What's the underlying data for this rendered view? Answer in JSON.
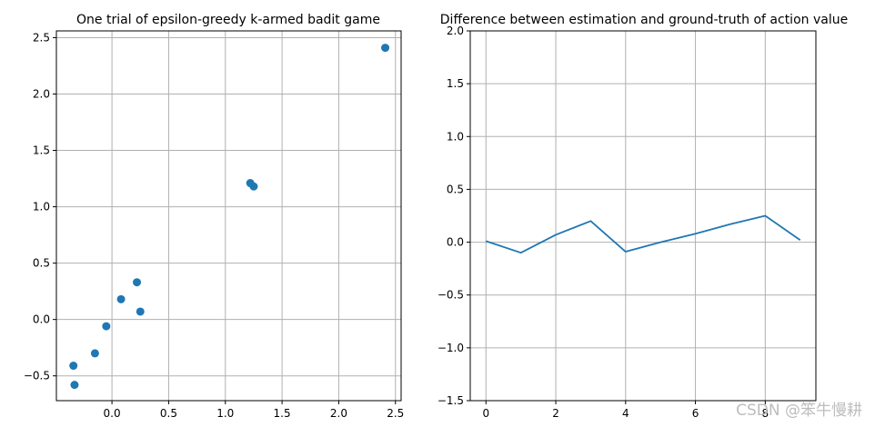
{
  "chart_data": [
    {
      "type": "scatter",
      "title": "One trial of epsilon-greedy k-armed badit game",
      "xlabel": "",
      "ylabel": "",
      "xlim": [
        -0.49,
        2.55
      ],
      "ylim": [
        -0.72,
        2.56
      ],
      "xticks": [
        0.0,
        0.5,
        1.0,
        1.5,
        2.0,
        2.5
      ],
      "xtick_labels": [
        "0.0",
        "0.5",
        "1.0",
        "1.5",
        "2.0",
        "2.5"
      ],
      "yticks": [
        -0.5,
        0.0,
        0.5,
        1.0,
        1.5,
        2.0,
        2.5
      ],
      "ytick_labels": [
        "−0.5",
        "0.0",
        "0.5",
        "1.0",
        "1.5",
        "2.0",
        "2.5"
      ],
      "grid": true,
      "color": "#1f77b4",
      "points": [
        {
          "x": -0.34,
          "y": -0.41
        },
        {
          "x": -0.33,
          "y": -0.58
        },
        {
          "x": -0.15,
          "y": -0.3
        },
        {
          "x": -0.05,
          "y": -0.06
        },
        {
          "x": 0.08,
          "y": 0.18
        },
        {
          "x": 0.22,
          "y": 0.33
        },
        {
          "x": 0.25,
          "y": 0.07
        },
        {
          "x": 1.22,
          "y": 1.21
        },
        {
          "x": 1.25,
          "y": 1.18
        },
        {
          "x": 2.41,
          "y": 2.41
        }
      ]
    },
    {
      "type": "line",
      "title": "Difference between estimation and ground-truth of action value",
      "xlabel": "",
      "ylabel": "",
      "xlim": [
        -0.45,
        9.45
      ],
      "ylim": [
        -1.5,
        2.0
      ],
      "xticks": [
        0,
        2,
        4,
        6,
        8
      ],
      "xtick_labels": [
        "0",
        "2",
        "4",
        "6",
        "8"
      ],
      "yticks": [
        -1.5,
        -1.0,
        -0.5,
        0.0,
        0.5,
        1.0,
        1.5,
        2.0
      ],
      "ytick_labels": [
        "−1.5",
        "−1.0",
        "−0.5",
        "0.0",
        "0.5",
        "1.0",
        "1.5",
        "2.0"
      ],
      "grid": true,
      "color": "#1f77b4",
      "x": [
        0,
        1,
        2,
        3,
        4,
        5,
        6,
        7,
        8,
        9
      ],
      "values": [
        0.01,
        -0.1,
        0.07,
        0.2,
        -0.09,
        0.0,
        0.08,
        0.17,
        0.25,
        0.02
      ]
    }
  ],
  "watermark": "CSDN @笨牛慢耕"
}
